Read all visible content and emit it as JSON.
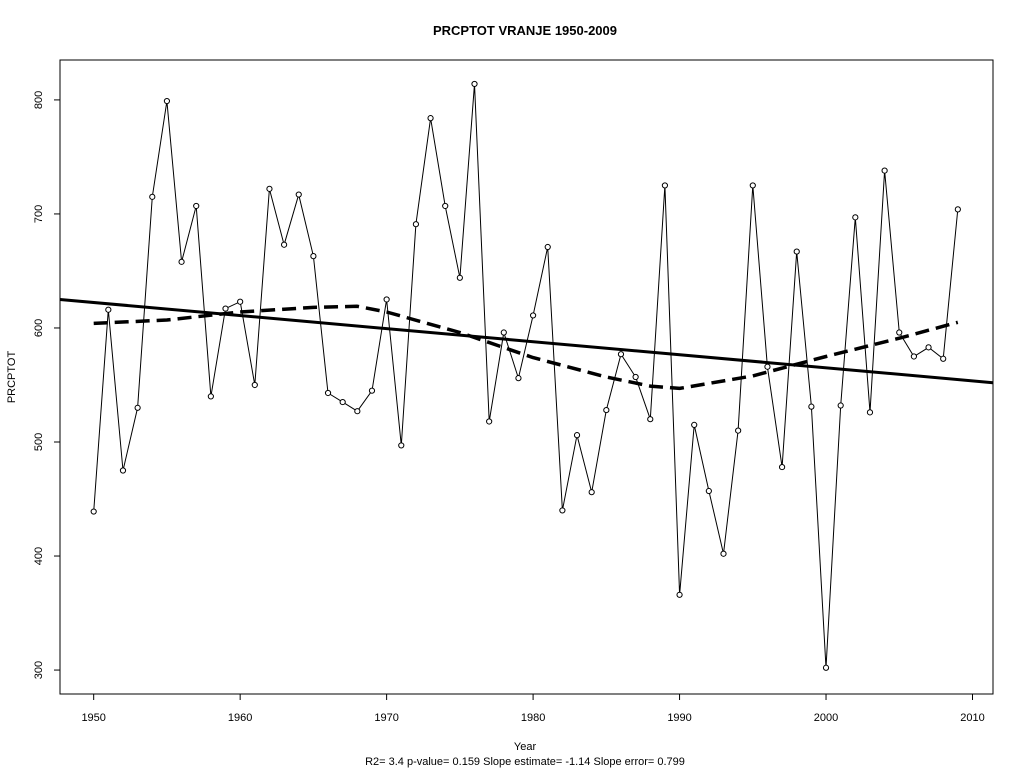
{
  "chart_data": {
    "type": "line",
    "title": "PRCPTOT   VRANJE 1950-2009",
    "xlabel": "Year",
    "ylabel": "PRCPTOT",
    "footer": "R2= 3.4  p-value= 0.159  Slope estimate= -1.14  Slope error= 0.799",
    "xlim": [
      1947.7,
      2011.4
    ],
    "ylim": [
      279,
      835
    ],
    "x_ticks": [
      1950,
      1960,
      1970,
      1980,
      1990,
      2000,
      2010
    ],
    "y_ticks": [
      300,
      400,
      500,
      600,
      700,
      800
    ],
    "grid": false,
    "colors": {
      "line": "#000000",
      "background": "#ffffff"
    },
    "series": [
      {
        "style": "line-with-open-circles",
        "x": [
          1950,
          1951,
          1952,
          1953,
          1954,
          1955,
          1956,
          1957,
          1958,
          1959,
          1960,
          1961,
          1962,
          1963,
          1964,
          1965,
          1966,
          1967,
          1968,
          1969,
          1970,
          1971,
          1972,
          1973,
          1974,
          1975,
          1976,
          1977,
          1978,
          1979,
          1980,
          1981,
          1982,
          1983,
          1984,
          1985,
          1986,
          1987,
          1988,
          1989,
          1990,
          1991,
          1992,
          1993,
          1994,
          1995,
          1996,
          1997,
          1998,
          1999,
          2000,
          2001,
          2002,
          2003,
          2004,
          2005,
          2006,
          2007,
          2008,
          2009
        ],
        "y": [
          439,
          616,
          475,
          530,
          715,
          799,
          658,
          707,
          540,
          617,
          623,
          550,
          722,
          673,
          717,
          663,
          543,
          535,
          527,
          545,
          625,
          497,
          691,
          784,
          707,
          644,
          814,
          518,
          596,
          556,
          611,
          671,
          440,
          506,
          456,
          528,
          577,
          557,
          520,
          725,
          366,
          515,
          457,
          402,
          510,
          725,
          566,
          478,
          667,
          531,
          302,
          532,
          697,
          526,
          738,
          596,
          575,
          583,
          573,
          704
        ]
      },
      {
        "style": "trend-line-solid",
        "x": [
          1947.7,
          2011.4
        ],
        "y": [
          625,
          552
        ]
      },
      {
        "style": "smooth-dashed",
        "x": [
          1950,
          1955,
          1960,
          1965,
          1968,
          1970,
          1975,
          1980,
          1985,
          1988,
          1990,
          1995,
          2000,
          2005,
          2009
        ],
        "y": [
          604,
          607,
          614,
          618,
          619,
          614,
          596,
          574,
          557,
          549,
          547,
          558,
          575,
          591,
          605
        ]
      }
    ]
  }
}
